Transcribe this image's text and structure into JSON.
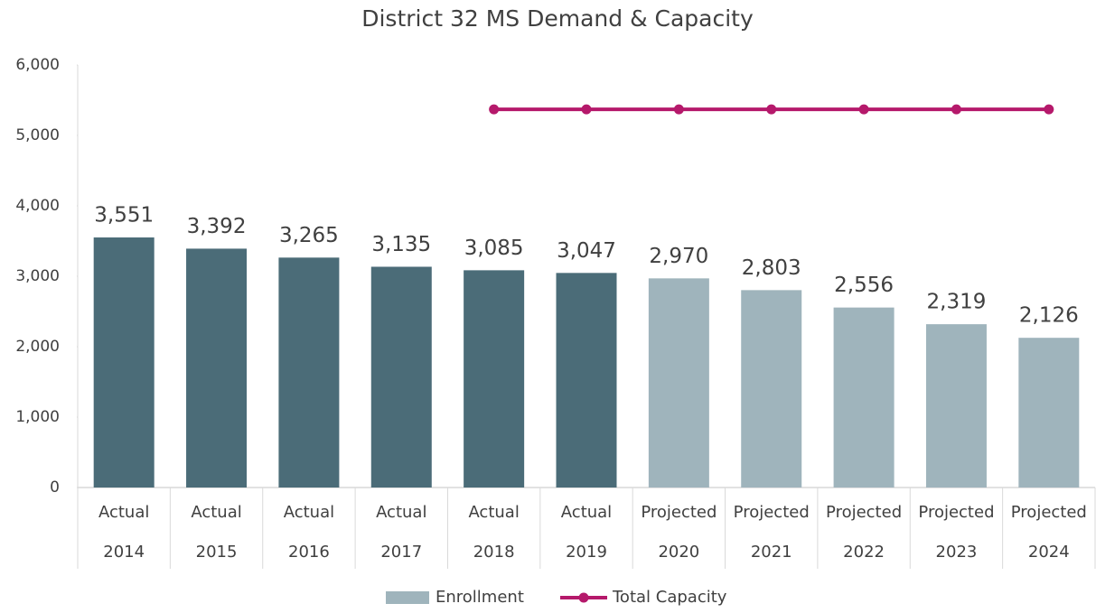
{
  "chart_data": {
    "type": "bar",
    "title": "District 32 MS Demand & Capacity",
    "categories": [
      [
        "Actual",
        "2014"
      ],
      [
        "Actual",
        "2015"
      ],
      [
        "Actual",
        "2016"
      ],
      [
        "Actual",
        "2017"
      ],
      [
        "Actual",
        "2018"
      ],
      [
        "Actual",
        "2019"
      ],
      [
        "Projected",
        "2020"
      ],
      [
        "Projected",
        "2021"
      ],
      [
        "Projected",
        "2022"
      ],
      [
        "Projected",
        "2023"
      ],
      [
        "Projected",
        "2024"
      ]
    ],
    "series": [
      {
        "name": "Enrollment",
        "type": "bar",
        "color": "#9fb4bc",
        "point_colors": [
          "#4b6c78",
          "#4b6c78",
          "#4b6c78",
          "#4b6c78",
          "#4b6c78",
          "#4b6c78",
          "#9fb4bc",
          "#9fb4bc",
          "#9fb4bc",
          "#9fb4bc",
          "#9fb4bc"
        ],
        "values": [
          3551,
          3392,
          3265,
          3135,
          3085,
          3047,
          2970,
          2803,
          2556,
          2319,
          2126
        ],
        "value_labels": [
          "3,551",
          "3,392",
          "3,265",
          "3,135",
          "3,085",
          "3,047",
          "2,970",
          "2,803",
          "2,556",
          "2,319",
          "2,126"
        ]
      },
      {
        "name": "Total Capacity",
        "type": "line",
        "color": "#b5196b",
        "values": [
          null,
          null,
          null,
          null,
          5370,
          5370,
          5370,
          5370,
          5370,
          5370,
          5370
        ]
      }
    ],
    "ylim": [
      0,
      6000
    ],
    "yticks": [
      0,
      {
        "value": 1000,
        "label": "1,000"
      },
      {
        "value": 2000,
        "label": "2,000"
      },
      {
        "value": 3000,
        "label": "3,000"
      },
      {
        "value": 4000,
        "label": "4,000"
      },
      {
        "value": 5000,
        "label": "5,000"
      },
      {
        "value": 6000,
        "label": "6,000"
      }
    ],
    "grid": false,
    "legend": "bottom"
  }
}
